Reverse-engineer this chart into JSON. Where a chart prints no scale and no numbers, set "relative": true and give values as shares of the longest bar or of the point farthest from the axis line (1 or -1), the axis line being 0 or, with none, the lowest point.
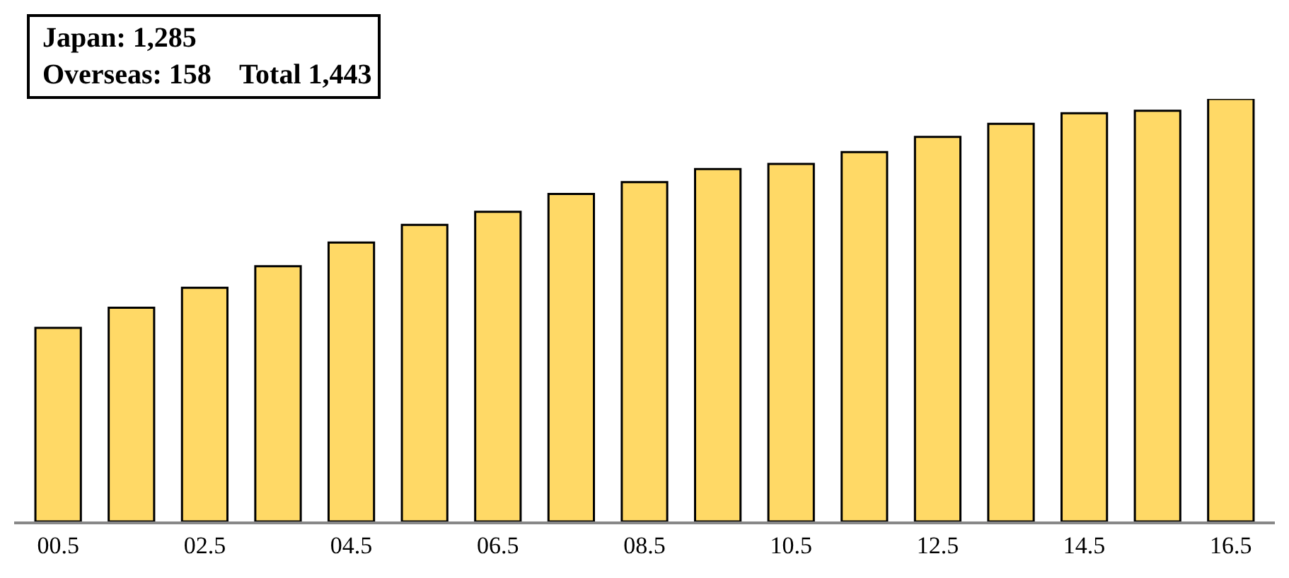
{
  "chart_data": {
    "type": "bar",
    "relative": true,
    "categories": [
      "00.5",
      null,
      "02.5",
      null,
      "04.5",
      null,
      "06.5",
      null,
      "08.5",
      null,
      "10.5",
      null,
      "12.5",
      null,
      "14.5",
      null,
      "16.5"
    ],
    "series": [
      {
        "color": "#ffd966",
        "values": [
          0.458,
          0.506,
          0.553,
          0.604,
          0.66,
          0.702,
          0.733,
          0.775,
          0.803,
          0.834,
          0.846,
          0.874,
          0.91,
          0.941,
          0.966,
          0.972,
          1
        ]
      }
    ],
    "annotations": [
      "Japan: 1,285",
      "Overseas: 158    Total 1,443"
    ]
  }
}
